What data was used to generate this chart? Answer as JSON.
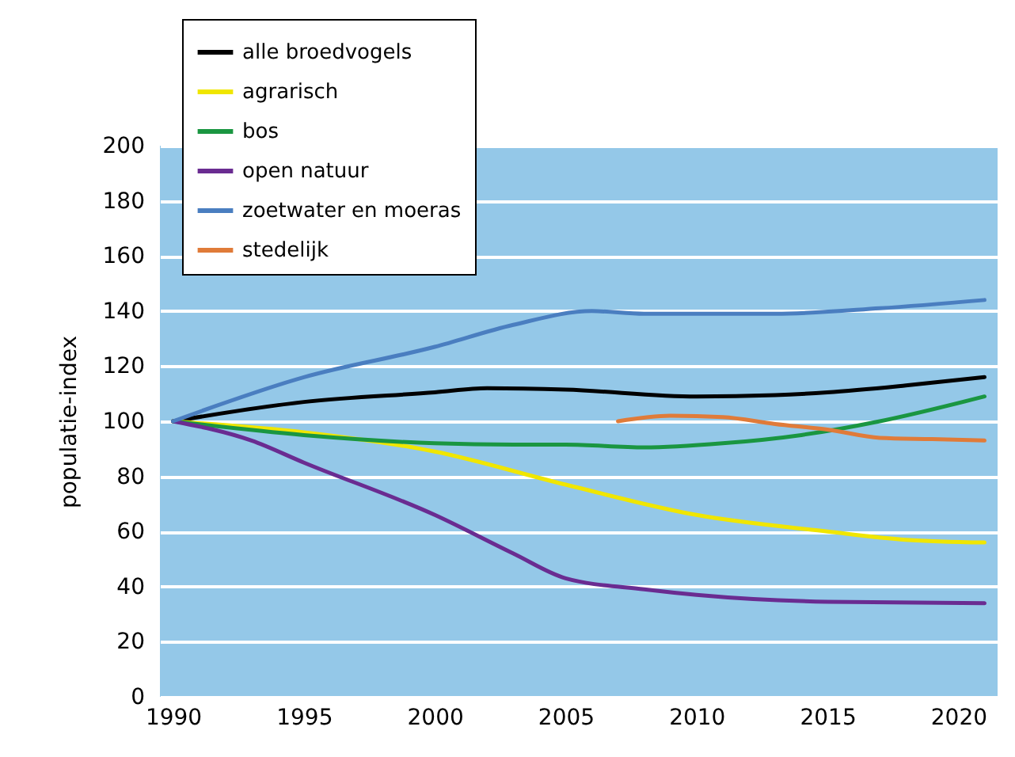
{
  "chart_data": {
    "type": "line",
    "ylabel": "populatie-index",
    "xlim": [
      1989.5,
      2021.5
    ],
    "xticks": [
      1990,
      1995,
      2000,
      2005,
      2010,
      2015,
      2020
    ],
    "ylim": [
      0,
      200
    ],
    "yticks": [
      0,
      20,
      40,
      60,
      80,
      100,
      120,
      140,
      160,
      180,
      200
    ],
    "grid": "y",
    "legend": "top left",
    "line_style": "solid",
    "marker": "none",
    "series": [
      {
        "name": "alle broedvogels",
        "color": "#000000",
        "x": [
          1990,
          1995,
          2000,
          2002,
          2005,
          2010,
          2013,
          2015,
          2018,
          2021
        ],
        "values": [
          100,
          107,
          110.5,
          112,
          111.5,
          109,
          109.5,
          110.5,
          113,
          116
        ]
      },
      {
        "name": "agrarisch",
        "color": "#f0e600",
        "x": [
          1990,
          1995,
          2000,
          2005,
          2010,
          2015,
          2018,
          2021
        ],
        "values": [
          100,
          96,
          89,
          77,
          66,
          60,
          57,
          56
        ]
      },
      {
        "name": "bos",
        "color": "#1a9641",
        "x": [
          1990,
          1995,
          2000,
          2003,
          2005,
          2008,
          2011,
          2014,
          2017,
          2021
        ],
        "values": [
          100,
          95,
          92,
          91.5,
          91.5,
          90.5,
          92,
          95,
          100,
          109
        ]
      },
      {
        "name": "open natuur",
        "color": "#6a2c91",
        "x": [
          1990,
          1993,
          1995,
          2000,
          2003,
          2005,
          2008,
          2010,
          2015,
          2021
        ],
        "values": [
          100,
          93,
          85,
          66,
          52,
          43,
          39,
          37,
          34.5,
          34
        ]
      },
      {
        "name": "zoetwater en moeras",
        "color": "#4a7ec0",
        "x": [
          1990,
          1995,
          2000,
          2003,
          2006,
          2008,
          2013,
          2017,
          2021
        ],
        "values": [
          100,
          116,
          127,
          135,
          140,
          139,
          139,
          141,
          144
        ]
      },
      {
        "name": "stedelijk",
        "color": "#e07b39",
        "x": [
          2007,
          2009,
          2011,
          2013,
          2015,
          2017,
          2019,
          2021
        ],
        "values": [
          100,
          102,
          101.5,
          99,
          97,
          94,
          93.5,
          93
        ]
      }
    ]
  }
}
